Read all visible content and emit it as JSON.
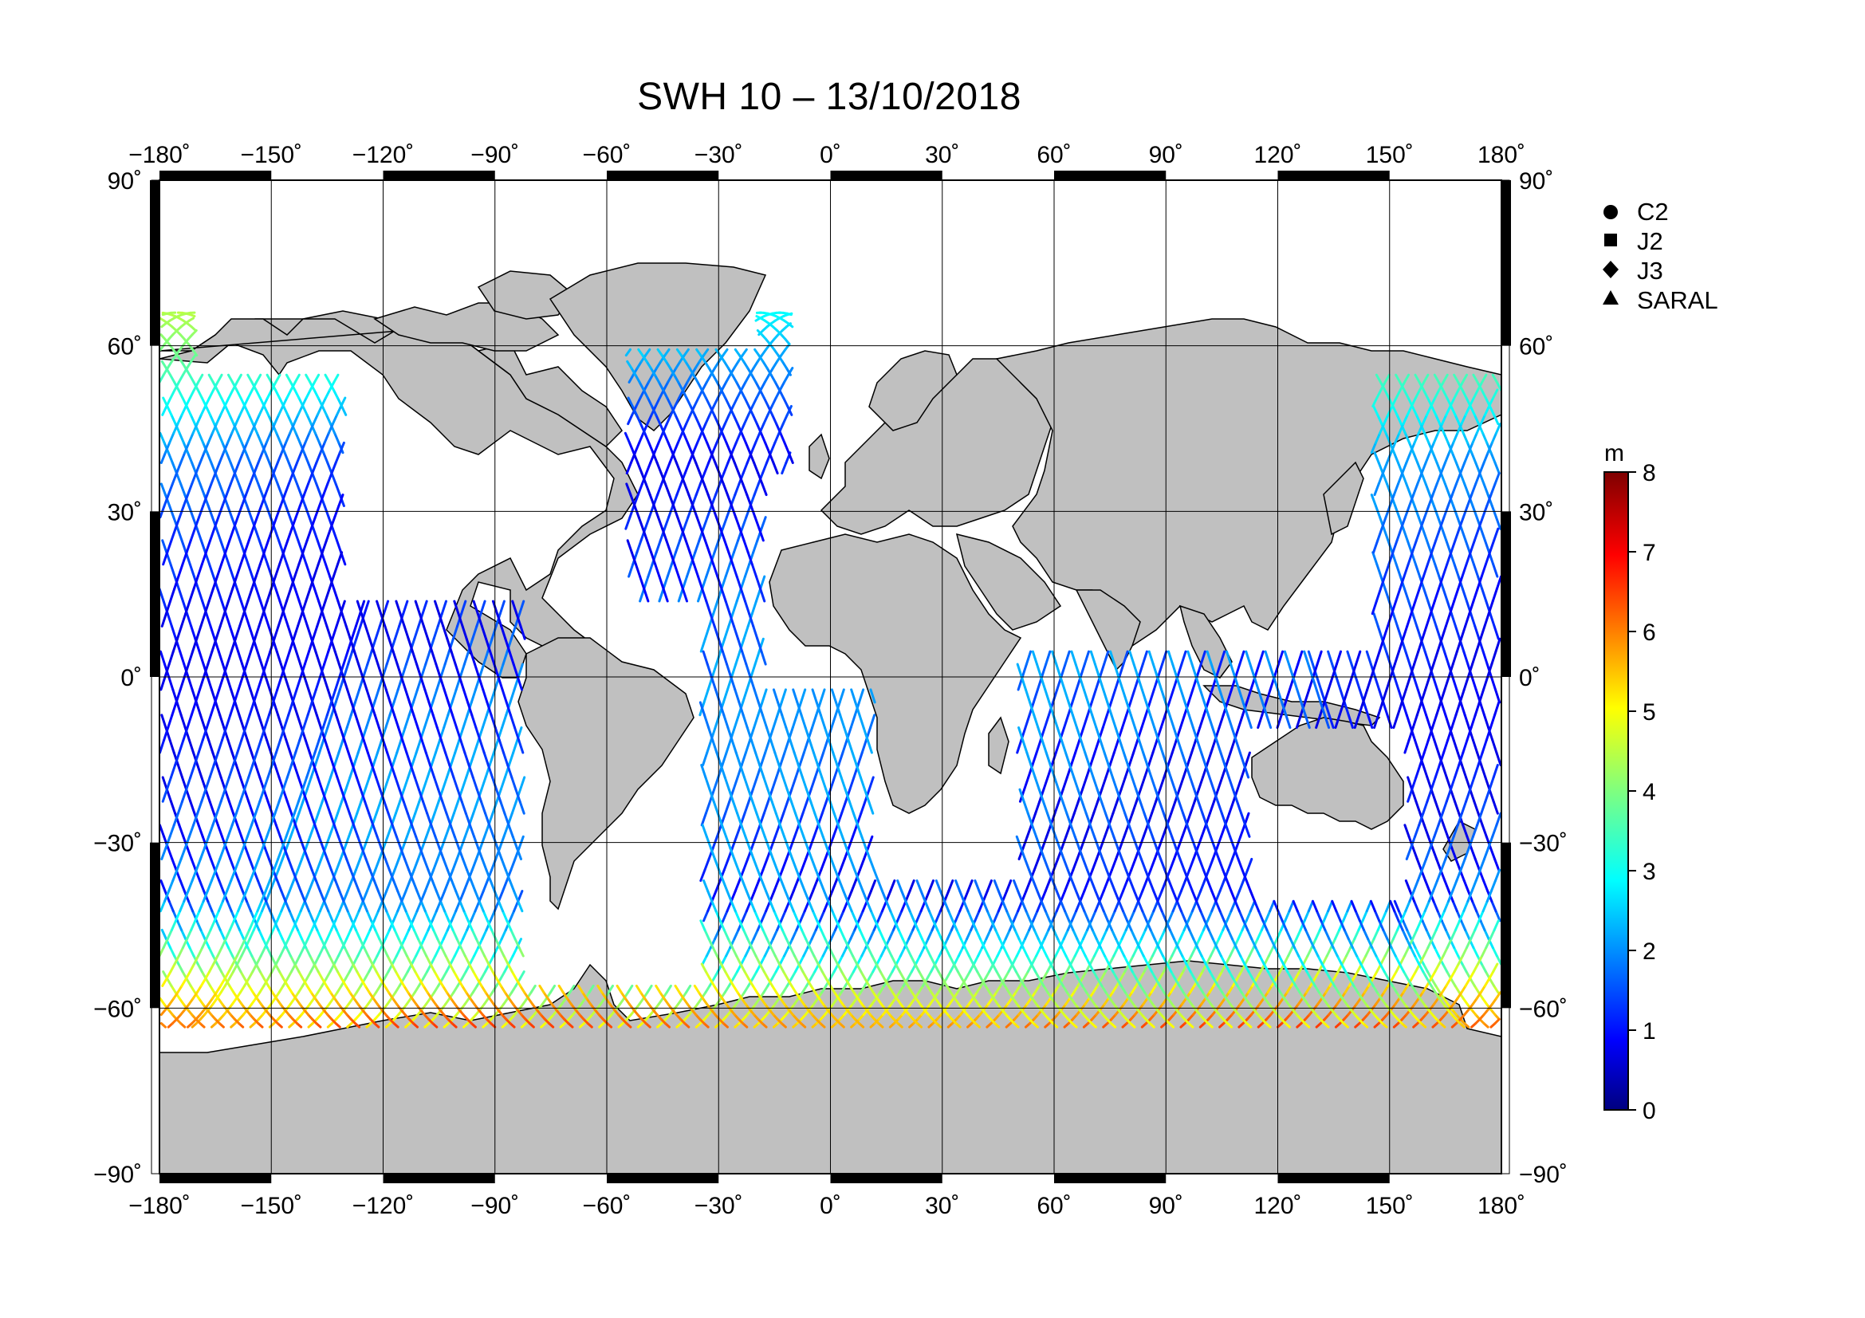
{
  "title": "SWH 10 – 13/10/2018",
  "map": {
    "lon_ticks": [
      "−180˚",
      "−150˚",
      "−120˚",
      "−90˚",
      "−60˚",
      "−30˚",
      "0˚",
      "30˚",
      "60˚",
      "90˚",
      "120˚",
      "150˚",
      "180˚"
    ],
    "lat_ticks": [
      "90˚",
      "60˚",
      "30˚",
      "0˚",
      "−30˚",
      "−60˚",
      "−90˚"
    ],
    "lon_values": [
      -180,
      -150,
      -120,
      -90,
      -60,
      -30,
      0,
      30,
      60,
      90,
      120,
      150,
      180
    ],
    "lat_values": [
      90,
      60,
      30,
      0,
      -30,
      -60,
      -90
    ],
    "land_color": "#c0c0c0",
    "ocean_color": "#ffffff",
    "grid": true
  },
  "legend": {
    "items": [
      {
        "label": "C2",
        "icon": "circle"
      },
      {
        "label": "J2",
        "icon": "square"
      },
      {
        "label": "J3",
        "icon": "diamond"
      },
      {
        "label": "SARAL",
        "icon": "triangle"
      }
    ]
  },
  "colorbar": {
    "unit": "m",
    "min": 0,
    "max": 8,
    "ticks": [
      "0",
      "1",
      "2",
      "3",
      "4",
      "5",
      "6",
      "7",
      "8"
    ],
    "colors": [
      "#00007f",
      "#0000ff",
      "#007fff",
      "#00ffff",
      "#7fff7f",
      "#ffff00",
      "#ff7f00",
      "#ff0000",
      "#7f0000"
    ]
  }
}
